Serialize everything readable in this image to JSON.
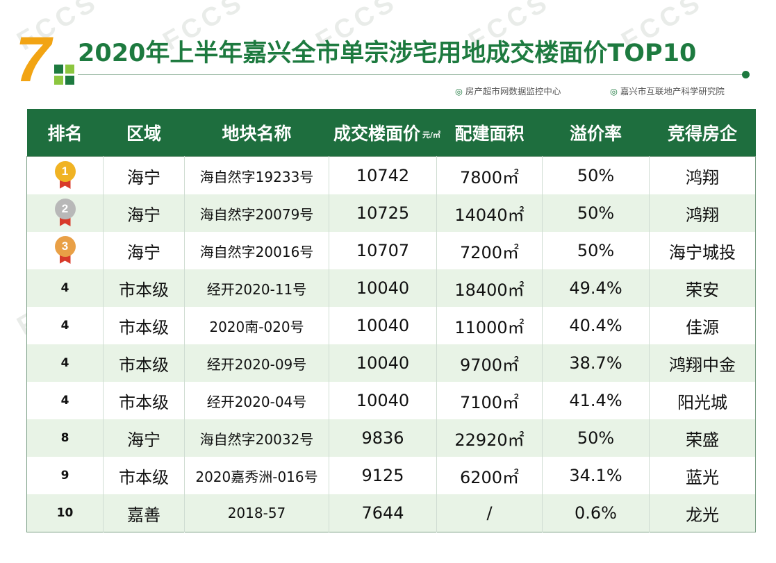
{
  "header": {
    "number": "7",
    "title": "2020年上半年嘉兴全市单宗涉宅用地成交楼面价TOP10",
    "source_1": "房产超市网数据监控中心",
    "source_2": "嘉兴市互联地产科学研究院",
    "watermark": "FCCS"
  },
  "table": {
    "columns": [
      "排名",
      "区域",
      "地块名称",
      "成交楼面价",
      "配建面积",
      "溢价率",
      "竞得房企"
    ],
    "price_unit": "元/㎡",
    "rows": [
      {
        "rank": "1",
        "district": "海宁",
        "plot": "海自然字19233号",
        "price": "10742",
        "area": "7800㎡",
        "premium": "50%",
        "company": "鸿翔"
      },
      {
        "rank": "2",
        "district": "海宁",
        "plot": "海自然字20079号",
        "price": "10725",
        "area": "14040㎡",
        "premium": "50%",
        "company": "鸿翔"
      },
      {
        "rank": "3",
        "district": "海宁",
        "plot": "海自然字20016号",
        "price": "10707",
        "area": "7200㎡",
        "premium": "50%",
        "company": "海宁城投"
      },
      {
        "rank": "4",
        "district": "市本级",
        "plot": "经开2020-11号",
        "price": "10040",
        "area": "18400㎡",
        "premium": "49.4%",
        "company": "荣安"
      },
      {
        "rank": "4",
        "district": "市本级",
        "plot": "2020南-020号",
        "price": "10040",
        "area": "11000㎡",
        "premium": "40.4%",
        "company": "佳源"
      },
      {
        "rank": "4",
        "district": "市本级",
        "plot": "经开2020-09号",
        "price": "10040",
        "area": "9700㎡",
        "premium": "38.7%",
        "company": "鸿翔中金"
      },
      {
        "rank": "4",
        "district": "市本级",
        "plot": "经开2020-04号",
        "price": "10040",
        "area": "7100㎡",
        "premium": "41.4%",
        "company": "阳光城"
      },
      {
        "rank": "8",
        "district": "海宁",
        "plot": "海自然字20032号",
        "price": "9836",
        "area": "22920㎡",
        "premium": "50%",
        "company": "荣盛"
      },
      {
        "rank": "9",
        "district": "市本级",
        "plot": "2020嘉秀洲-016号",
        "price": "9125",
        "area": "6200㎡",
        "premium": "34.1%",
        "company": "蓝光"
      },
      {
        "rank": "10",
        "district": "嘉善",
        "plot": "2018-57",
        "price": "7644",
        "area": "/",
        "premium": "0.6%",
        "company": "龙光"
      }
    ]
  },
  "colors": {
    "header_green": "#1e6e3e",
    "title_green": "#1d7a3f",
    "accent_orange": "#f2a413",
    "row_alt": "#e8f3e6",
    "gold": "#f0b323",
    "silver": "#b8b8b8",
    "bronze": "#e9a046"
  }
}
